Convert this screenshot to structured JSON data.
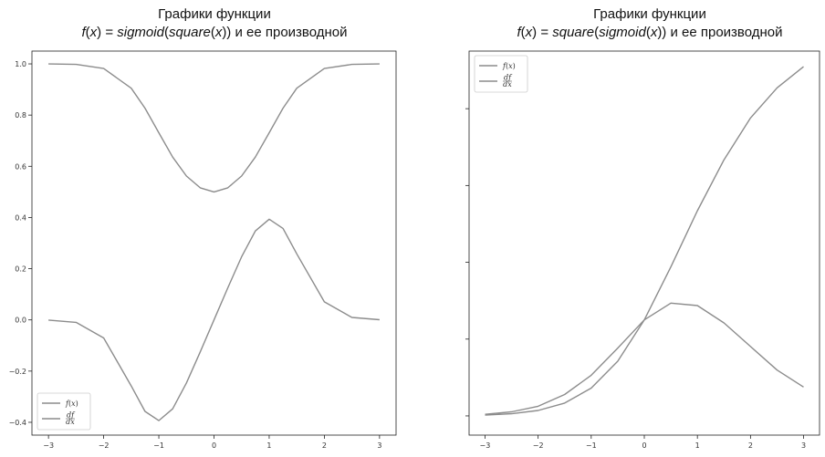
{
  "chart_data": [
    {
      "type": "line",
      "title_line1": "Графики функции",
      "title_line2_parts": [
        "f",
        "(",
        "x",
        ") = ",
        "sigmoid",
        "(",
        "square",
        "(",
        "x",
        ")) и ее производной"
      ],
      "xlim": [
        -3.3,
        3.3
      ],
      "ylim": [
        -0.45,
        1.05
      ],
      "x_ticks": [
        -3,
        -2,
        -1,
        0,
        1,
        2,
        3
      ],
      "x_tick_labels": [
        "−3",
        "−2",
        "−1",
        "0",
        "1",
        "2",
        "3"
      ],
      "y_ticks": [
        -0.4,
        -0.2,
        0.0,
        0.2,
        0.4,
        0.6,
        0.8,
        1.0
      ],
      "y_tick_labels": [
        "−0.4",
        "−0.2",
        "0.0",
        "0.2",
        "0.4",
        "0.6",
        "0.8",
        "1.0"
      ],
      "legend_position": "lower-left",
      "series_color": "#8c8c8c",
      "x": [
        -3,
        -2.5,
        -2,
        -1.5,
        -1.25,
        -1,
        -0.75,
        -0.5,
        -0.25,
        0,
        0.25,
        0.5,
        0.75,
        1,
        1.25,
        1.5,
        2,
        2.5,
        3
      ],
      "series": [
        {
          "name": "f(x)",
          "label_parts": [
            "f",
            "(",
            "x",
            ")"
          ],
          "values": [
            0.9999,
            0.9981,
            0.982,
            0.905,
            0.827,
            0.731,
            0.636,
            0.562,
            0.516,
            0.5,
            0.516,
            0.562,
            0.636,
            0.731,
            0.827,
            0.905,
            0.982,
            0.9981,
            0.9999
          ]
        },
        {
          "name": "df/dx",
          "label_parts": [
            "df",
            "dx"
          ],
          "values": [
            -0.0007,
            -0.0096,
            -0.0707,
            -0.2579,
            -0.3574,
            -0.3932,
            -0.3475,
            -0.2461,
            -0.1249,
            0,
            0.1249,
            0.2461,
            0.3475,
            0.3932,
            0.3574,
            0.2579,
            0.0707,
            0.0096,
            0.0007
          ]
        }
      ]
    },
    {
      "type": "line",
      "title_line1": "Графики функции",
      "title_line2_parts": [
        "f",
        "(",
        "x",
        ") = ",
        "square",
        "(",
        "sigmoid",
        "(",
        "x",
        ")) и ее производной"
      ],
      "xlim": [
        -3.3,
        3.3
      ],
      "ylim": [
        -0.05,
        0.95
      ],
      "x_ticks": [
        -3,
        -2,
        -1,
        0,
        1,
        2,
        3
      ],
      "x_tick_labels": [
        "−3",
        "−2",
        "−1",
        "0",
        "1",
        "2",
        "3"
      ],
      "legend_position": "top-left",
      "series_color": "#8c8c8c",
      "x": [
        -3,
        -2.5,
        -2,
        -1.5,
        -1,
        -0.5,
        0,
        0.5,
        1,
        1.5,
        2,
        2.5,
        3
      ],
      "series": [
        {
          "name": "f(x)",
          "label_parts": [
            "f",
            "(",
            "x",
            ")"
          ],
          "values": [
            0.0022,
            0.0057,
            0.0142,
            0.0334,
            0.0723,
            0.1424,
            0.25,
            0.3879,
            0.5344,
            0.6669,
            0.7758,
            0.8543,
            0.9094
          ]
        },
        {
          "name": "df/dx",
          "label_parts": [
            "df",
            "dx"
          ],
          "values": [
            0.0042,
            0.0105,
            0.0251,
            0.0557,
            0.1058,
            0.1765,
            0.25,
            0.2938,
            0.2874,
            0.2421,
            0.1806,
            0.1193,
            0.0751
          ]
        }
      ]
    }
  ]
}
